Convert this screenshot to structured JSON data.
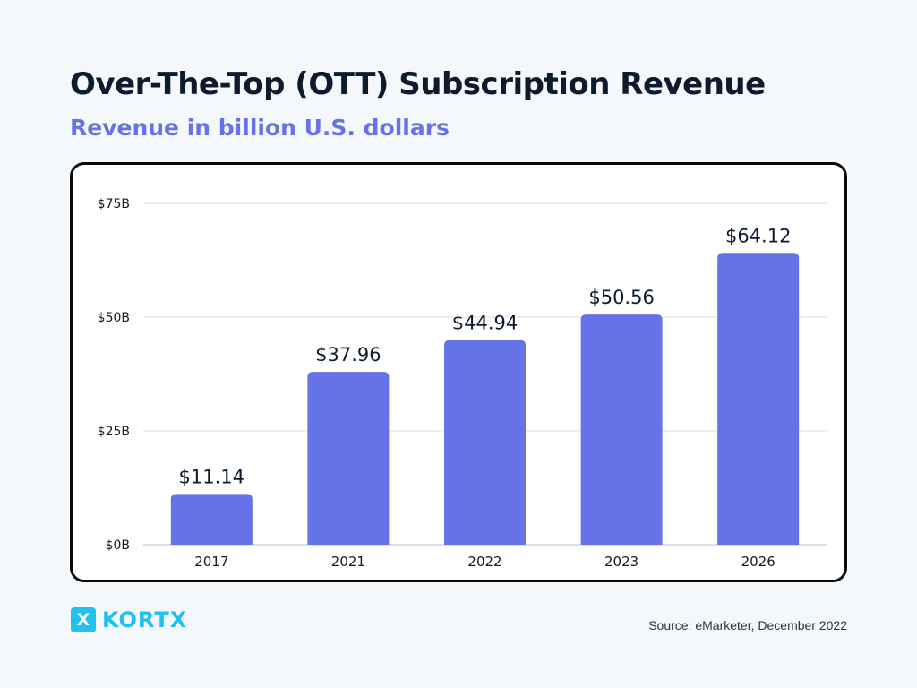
{
  "header": {
    "title": "Over-The-Top (OTT) Subscription Revenue",
    "subtitle": "Revenue in billion U.S. dollars"
  },
  "colors": {
    "bar": "#6673e8",
    "subtitle": "#6673e8",
    "grid": "#d9dde3",
    "logo_accent": "#1ec1f0"
  },
  "chart_data": {
    "type": "bar",
    "title": "Over-The-Top (OTT) Subscription Revenue",
    "subtitle": "Revenue in billion U.S. dollars",
    "xlabel": "",
    "ylabel": "",
    "categories": [
      "2017",
      "2021",
      "2022",
      "2023",
      "2026"
    ],
    "values": [
      11.14,
      37.96,
      44.94,
      50.56,
      64.12
    ],
    "value_labels": [
      "$11.14",
      "$37.96",
      "$44.94",
      "$50.56",
      "$64.12"
    ],
    "ylim": [
      0,
      75
    ],
    "yticks": [
      0,
      25,
      50,
      75
    ],
    "ytick_labels": [
      "$0B",
      "$25B",
      "$50B",
      "$75B"
    ],
    "grid": true,
    "legend": "none"
  },
  "branding": {
    "logo_mark": "X",
    "logo_text": "KORTX",
    "logo_icon": "x-logo-icon"
  },
  "footer": {
    "source": "Source: eMarketer, December 2022"
  }
}
